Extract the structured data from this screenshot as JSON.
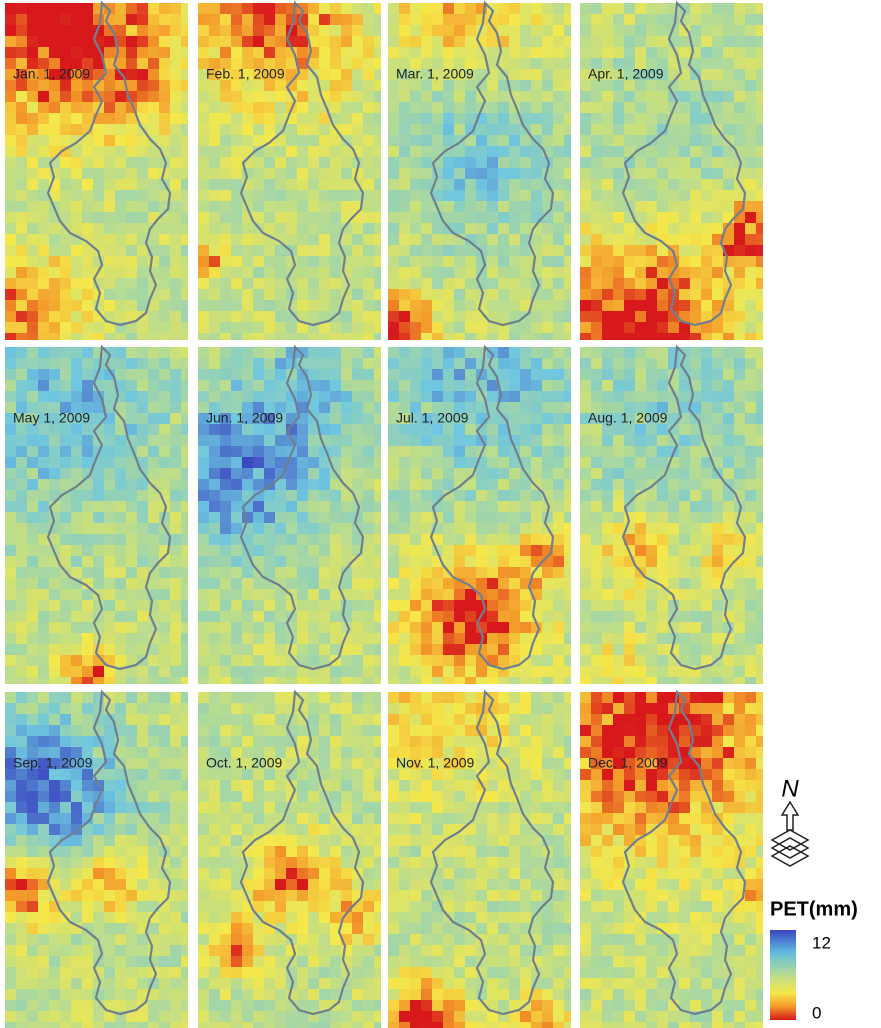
{
  "panels": [
    {
      "label": "Jan. 1, 2009"
    },
    {
      "label": "Feb. 1, 2009"
    },
    {
      "label": "Mar. 1, 2009"
    },
    {
      "label": "Apr. 1, 2009"
    },
    {
      "label": "May 1, 2009"
    },
    {
      "label": "Jun. 1, 2009"
    },
    {
      "label": "Jul. 1, 2009"
    },
    {
      "label": "Aug. 1, 2009"
    },
    {
      "label": "Sep. 1, 2009"
    },
    {
      "label": "Oct. 1, 2009"
    },
    {
      "label": "Nov. 1, 2009"
    },
    {
      "label": "Dec. 1, 2009"
    }
  ],
  "legend": {
    "title": "PET(mm)",
    "max": 12,
    "min": 0
  },
  "north": "N"
}
